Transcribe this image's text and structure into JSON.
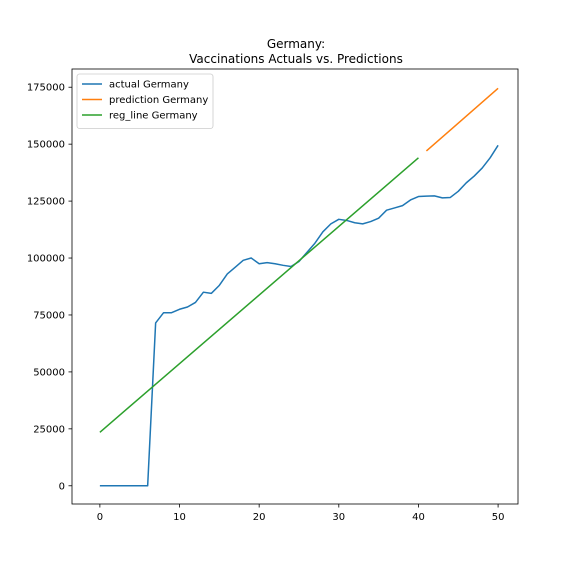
{
  "chart_data": {
    "type": "line",
    "title": "Germany:\nVaccinations Actuals vs. Predictions",
    "xlabel": "",
    "ylabel": "",
    "xlim": [
      -3.5,
      52.5
    ],
    "ylim": [
      -8000,
      183000
    ],
    "xticks": [
      0,
      10,
      20,
      30,
      40,
      50
    ],
    "xtick_labels": [
      "0",
      "10",
      "20",
      "30",
      "40",
      "50"
    ],
    "yticks": [
      0,
      25000,
      50000,
      75000,
      100000,
      125000,
      150000,
      175000
    ],
    "ytick_labels": [
      "0",
      "25000",
      "50000",
      "75000",
      "100000",
      "125000",
      "150000",
      "175000"
    ],
    "grid": false,
    "legend_position": "top-left",
    "series": [
      {
        "name": "actual Germany",
        "color": "#1f77b4",
        "x": [
          0,
          1,
          2,
          3,
          4,
          5,
          6,
          7,
          8,
          9,
          10,
          11,
          12,
          13,
          14,
          15,
          16,
          17,
          18,
          19,
          20,
          21,
          22,
          23,
          24,
          25,
          26,
          27,
          28,
          29,
          30,
          31,
          32,
          33,
          34,
          35,
          36,
          37,
          38,
          39,
          40,
          41,
          42,
          43,
          44,
          45,
          46,
          47,
          48,
          49,
          50
        ],
        "y": [
          0,
          0,
          0,
          0,
          0,
          0,
          0,
          71500,
          76000,
          76000,
          77500,
          78500,
          80500,
          85000,
          84500,
          88000,
          93000,
          96000,
          99000,
          100000,
          97500,
          98000,
          97500,
          96800,
          96300,
          98500,
          102500,
          106500,
          111500,
          115000,
          117000,
          116500,
          115500,
          115000,
          116000,
          117500,
          121000,
          122000,
          123000,
          125500,
          127000,
          127200,
          127300,
          126400,
          126600,
          129300,
          133000,
          136000,
          139500,
          144000,
          149500
        ]
      },
      {
        "name": "prediction Germany",
        "color": "#ff7f0e",
        "x": [
          41,
          50
        ],
        "y": [
          147000,
          174500
        ]
      },
      {
        "name": "reg_line Germany",
        "color": "#2ca02c",
        "x": [
          0,
          40
        ],
        "y": [
          23500,
          144000
        ]
      }
    ]
  }
}
